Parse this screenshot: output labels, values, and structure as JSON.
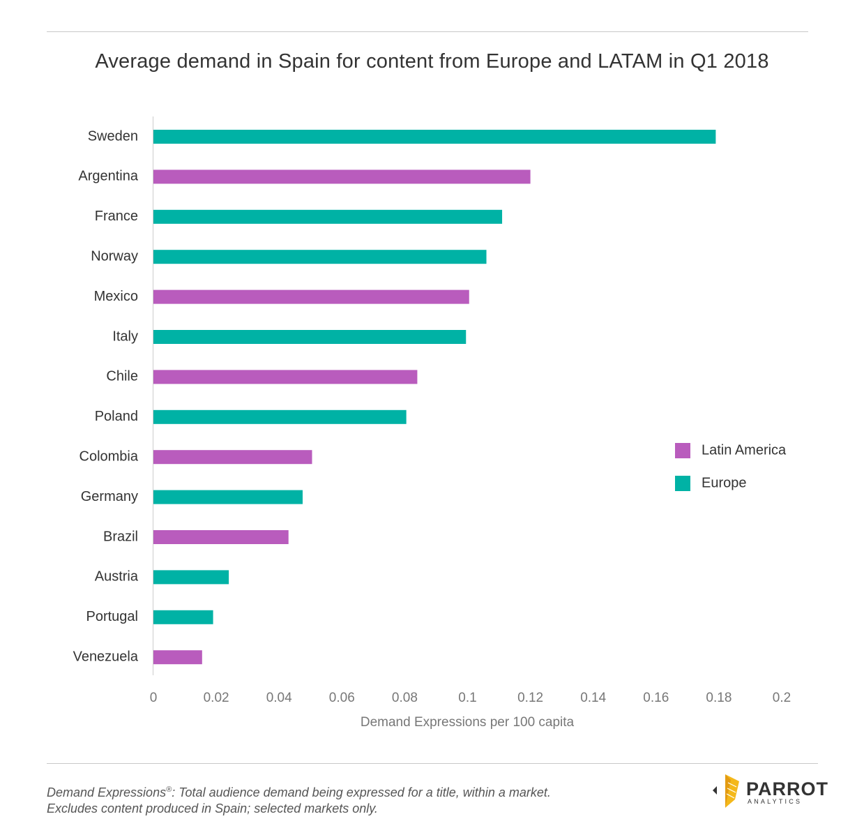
{
  "chart_data": {
    "type": "bar",
    "orientation": "horizontal",
    "title": "Average demand in Spain for content from Europe and LATAM in Q1 2018",
    "xlabel": "Demand Expressions per 100 capita",
    "ylabel": "",
    "xlim": [
      0,
      0.2
    ],
    "xticks": [
      "0",
      "0.02",
      "0.04",
      "0.06",
      "0.08",
      "0.1",
      "0.12",
      "0.14",
      "0.16",
      "0.18",
      "0.2"
    ],
    "grid": false,
    "legend_position": "right",
    "legend": [
      {
        "name": "Latin America",
        "color": "#b95cbd"
      },
      {
        "name": "Europe",
        "color": "#00b2a5"
      }
    ],
    "categories": [
      "Sweden",
      "Argentina",
      "France",
      "Norway",
      "Mexico",
      "Italy",
      "Chile",
      "Poland",
      "Colombia",
      "Germany",
      "Brazil",
      "Austria",
      "Portugal",
      "Venezuela"
    ],
    "values": [
      0.179,
      0.12,
      0.111,
      0.106,
      0.1005,
      0.0995,
      0.084,
      0.0805,
      0.0505,
      0.0475,
      0.043,
      0.024,
      0.019,
      0.0155
    ],
    "groups": [
      "Europe",
      "Latin America",
      "Europe",
      "Europe",
      "Latin America",
      "Europe",
      "Latin America",
      "Europe",
      "Latin America",
      "Europe",
      "Latin America",
      "Europe",
      "Europe",
      "Latin America"
    ]
  },
  "footnote": {
    "term": "Demand Expressions",
    "mark": "®",
    "definition": ":  Total audience demand being expressed for a title, within a market.",
    "line2": "Excludes content produced in Spain; selected markets only."
  },
  "logo": {
    "word": "PARROT",
    "sub": "ANALYTICS"
  }
}
